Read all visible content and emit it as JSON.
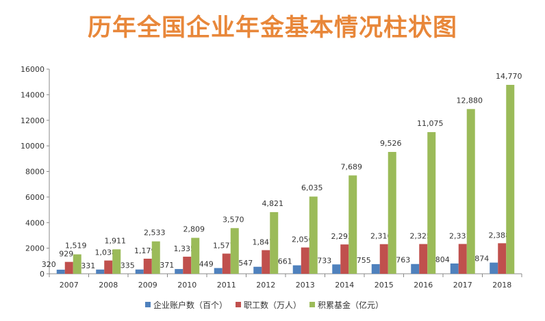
{
  "chart_data": {
    "type": "bar",
    "title": "历年全国企业年金基本情况柱状图",
    "categories": [
      "2007",
      "2008",
      "2009",
      "2010",
      "2011",
      "2012",
      "2013",
      "2014",
      "2015",
      "2016",
      "2017",
      "2018"
    ],
    "series": [
      {
        "name": "企业账户数（百个）",
        "color": "#4F81BD",
        "values": [
          320,
          331,
          335,
          371,
          449,
          547,
          661,
          733,
          755,
          763,
          804,
          874
        ],
        "labels": [
          "320",
          "331",
          "335",
          "371",
          "449",
          "547",
          "661",
          "733",
          "755",
          "763",
          "804",
          "874"
        ]
      },
      {
        "name": "职工数（万人）",
        "color": "#C0504D",
        "values": [
          929,
          1038,
          1179,
          1335,
          1577,
          1847,
          2056,
          2293,
          2316,
          2325,
          2331,
          2388
        ],
        "labels": [
          "929",
          "1,038",
          "1,179",
          "1,335",
          "1,577",
          "1,847",
          "2,056",
          "2,293",
          "2,316",
          "2,325",
          "2,331",
          "2,388"
        ]
      },
      {
        "name": "积累基金（亿元）",
        "color": "#9BBB59",
        "values": [
          1519,
          1911,
          2533,
          2809,
          3570,
          4821,
          6035,
          7689,
          9526,
          11075,
          12880,
          14770
        ],
        "labels": [
          "1,519",
          "1,911",
          "2,533",
          "2,809",
          "3,570",
          "4,821",
          "6,035",
          "7,689",
          "9,526",
          "11,075",
          "12,880",
          "14,770"
        ]
      }
    ],
    "yticks": [
      "0",
      "2000",
      "4000",
      "6000",
      "8000",
      "10000",
      "12000",
      "14000",
      "16000"
    ],
    "ylim": [
      0,
      16000
    ],
    "grid": false,
    "legend": "bottom",
    "title_color": "#E8873A"
  }
}
